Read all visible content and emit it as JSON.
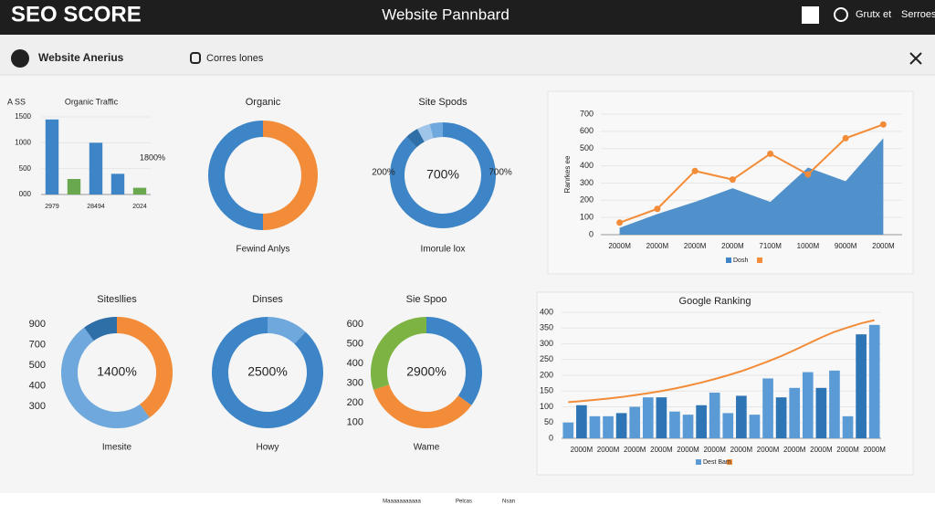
{
  "header": {
    "title": "SEO SCORE",
    "center": "Website Pannbard",
    "links": [
      "Grutx et",
      "Serroes"
    ]
  },
  "subbar": {
    "left": "Website Anerius",
    "tab": "Corres lones"
  },
  "chart_data": [
    {
      "type": "bar",
      "title": "Organic Traffic",
      "label": "A SS",
      "annotation": "1800%",
      "categories": [
        "2979",
        null,
        "28494",
        null,
        "2024"
      ],
      "values": [
        1450,
        300,
        1000,
        400,
        130
      ],
      "colors": [
        "#3d85c6",
        "#6aa84f",
        "#3d85c6",
        "#3d85c6",
        "#6aa84f"
      ],
      "ylim": [
        0,
        1500
      ],
      "yticks": [
        {
          "value": 0,
          "label": "000"
        },
        500,
        1000,
        1500
      ]
    },
    {
      "type": "pie",
      "title": "Organic",
      "caption": "Fewind Anlys",
      "values": [
        50,
        50
      ],
      "colors": [
        "#f28c38",
        "#3d85c6"
      ]
    },
    {
      "type": "pie",
      "title": "Site Spods",
      "caption": "Imorule lox",
      "center_label": "700%",
      "side_labels": [
        "200%",
        "700%"
      ],
      "values": [
        88,
        4,
        4,
        4
      ],
      "colors": [
        "#3d85c6",
        "#2f6fa8",
        "#9fc5e8",
        "#6fa8dc"
      ]
    },
    {
      "type": "line",
      "y_label": "Ranrkes ee",
      "legend": "Dosh",
      "categories": [
        "2000M",
        "2000M",
        "2000M",
        "2000M",
        "7100M",
        "1000M",
        "9000M",
        "2000M"
      ],
      "series": [
        {
          "style": "area",
          "color": "#3d85c6",
          "values": [
            40,
            120,
            190,
            270,
            190,
            390,
            310,
            560
          ]
        },
        {
          "style": "line",
          "color": "#f28c38",
          "values": [
            70,
            150,
            370,
            320,
            470,
            350,
            560,
            640
          ]
        }
      ],
      "ylim": [
        0,
        700
      ],
      "yticks": [
        0,
        100,
        200,
        300,
        400,
        500,
        600,
        700
      ]
    },
    {
      "type": "pie",
      "title": "Sitesllies",
      "caption": "Imesite",
      "center_label": "1400%",
      "axis_labels": [
        900,
        700,
        500,
        400,
        300
      ],
      "values": [
        40,
        50,
        10
      ],
      "colors": [
        "#f28c38",
        "#6fa8dc",
        "#2f6fa8"
      ]
    },
    {
      "type": "pie",
      "title": "Dinses",
      "caption": "Howy",
      "center_label": "2500%",
      "values": [
        12,
        88
      ],
      "colors": [
        "#6fa8dc",
        "#3d85c6"
      ]
    },
    {
      "type": "pie",
      "title": "Sie Spoo",
      "caption": "Wame",
      "center_label": "2900%",
      "axis_labels": [
        600,
        500,
        400,
        300,
        200,
        100
      ],
      "values": [
        35,
        35,
        30
      ],
      "colors": [
        "#3d85c6",
        "#f28c38",
        "#7cb342"
      ]
    },
    {
      "type": "bar",
      "title": "Google Ranking",
      "legend": "Dest Bam",
      "categories": [
        null,
        "2000M",
        null,
        "2000M",
        null,
        "2000M",
        null,
        "2000M",
        null,
        "2000M",
        null,
        "2000M",
        null,
        "2000M",
        null,
        "2000M",
        null,
        "2000M",
        null,
        "2000M",
        null,
        "2000M",
        null,
        "2000M"
      ],
      "series": [
        {
          "style": "bar",
          "color": "#5b9bd5",
          "values": [
            50,
            105,
            70,
            70,
            80,
            100,
            130,
            130,
            85,
            75,
            105,
            145,
            80,
            135,
            75,
            190,
            130,
            160,
            210,
            160,
            215,
            70,
            330,
            360
          ]
        },
        {
          "style": "line",
          "color": "#f28c38",
          "values": [
            115,
            118,
            122,
            126,
            131,
            137,
            143,
            150,
            158,
            167,
            177,
            188,
            200,
            213,
            228,
            244,
            261,
            280,
            300,
            320,
            338,
            352,
            365,
            375
          ]
        }
      ],
      "ylim": [
        0,
        400
      ],
      "yticks": [
        0,
        50,
        100,
        150,
        200,
        250,
        300,
        350,
        400
      ]
    }
  ],
  "footer": [
    "Maaaaaaaaaaa",
    "Pelcas",
    "Nsan"
  ]
}
